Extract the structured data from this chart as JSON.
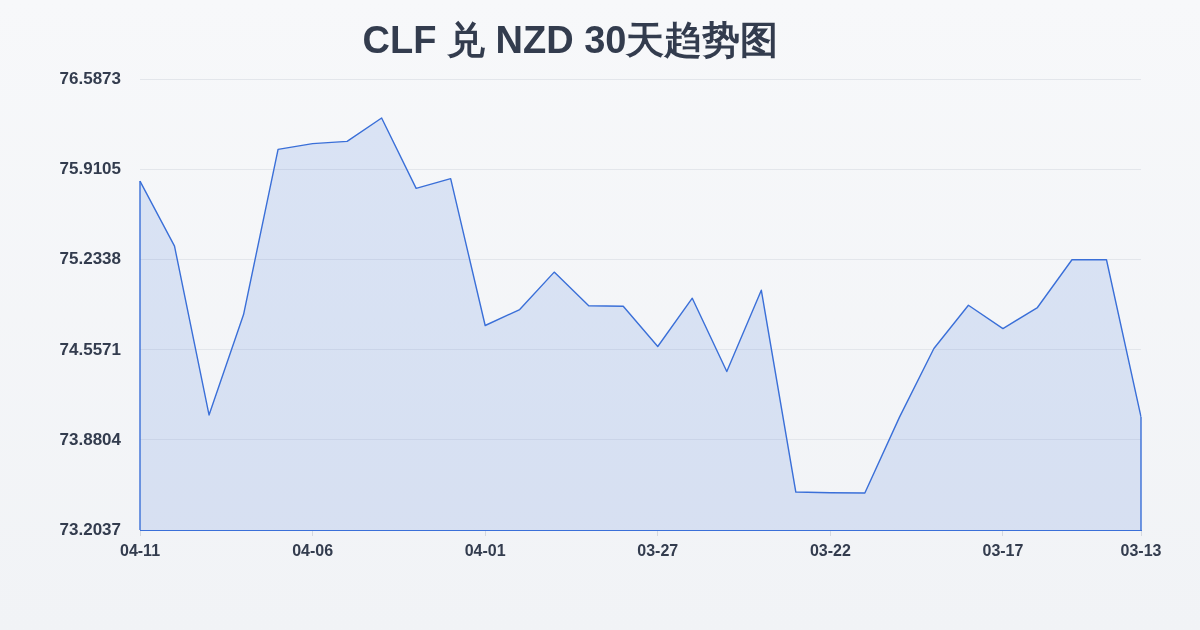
{
  "chart_data": {
    "type": "area",
    "title": "CLF 兑 NZD 30天趋势图",
    "categories": [
      "04-11",
      null,
      null,
      null,
      null,
      "04-06",
      null,
      null,
      null,
      null,
      "04-01",
      null,
      null,
      null,
      null,
      "03-27",
      null,
      null,
      null,
      null,
      "03-22",
      null,
      null,
      null,
      null,
      "03-17",
      null,
      null,
      null,
      "03-13"
    ],
    "values": [
      75.825,
      75.336,
      74.068,
      74.822,
      76.063,
      76.106,
      76.123,
      76.299,
      75.77,
      75.843,
      74.74,
      74.86,
      75.141,
      74.888,
      74.885,
      74.582,
      74.945,
      74.394,
      75.005,
      73.489,
      73.484,
      73.482,
      74.05,
      74.567,
      74.892,
      74.717,
      74.875,
      75.234,
      75.234,
      74.053
    ],
    "color": "#3a6fd8",
    "ylim": [
      73.2037,
      76.5873
    ],
    "yticks": [
      73.2037,
      73.8804,
      74.5571,
      75.2338,
      75.9105,
      76.5873
    ],
    "grid": "y"
  }
}
